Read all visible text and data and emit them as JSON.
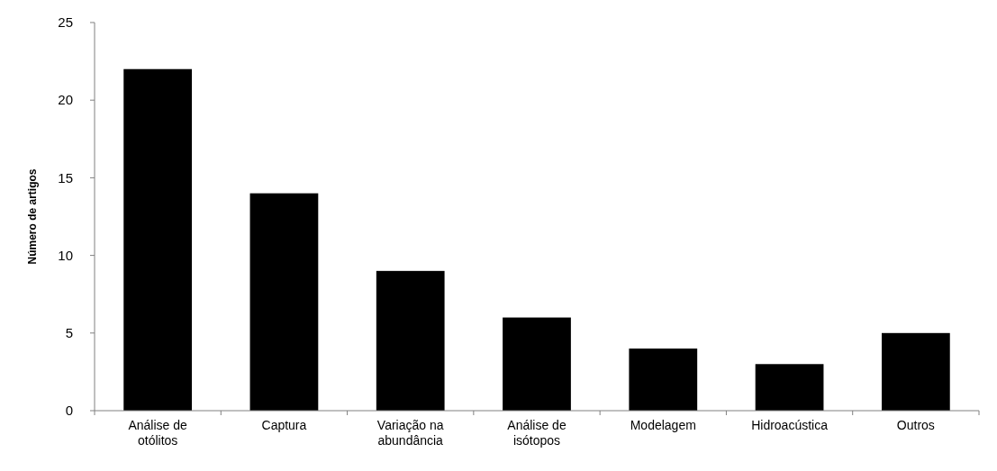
{
  "chart_data": {
    "type": "bar",
    "ylabel": "Número de artigos",
    "categories": [
      "Análise de otólitos",
      "Captura",
      "Variação na abundância",
      "Análise de isótopos",
      "Modelagem",
      "Hidroacústica",
      "Outros"
    ],
    "values": [
      22,
      14,
      9,
      6,
      4,
      3,
      5
    ],
    "color": "#000000",
    "ylim": [
      0,
      25
    ],
    "yticks": [
      0,
      5,
      10,
      15,
      20,
      25
    ],
    "grid": false
  }
}
